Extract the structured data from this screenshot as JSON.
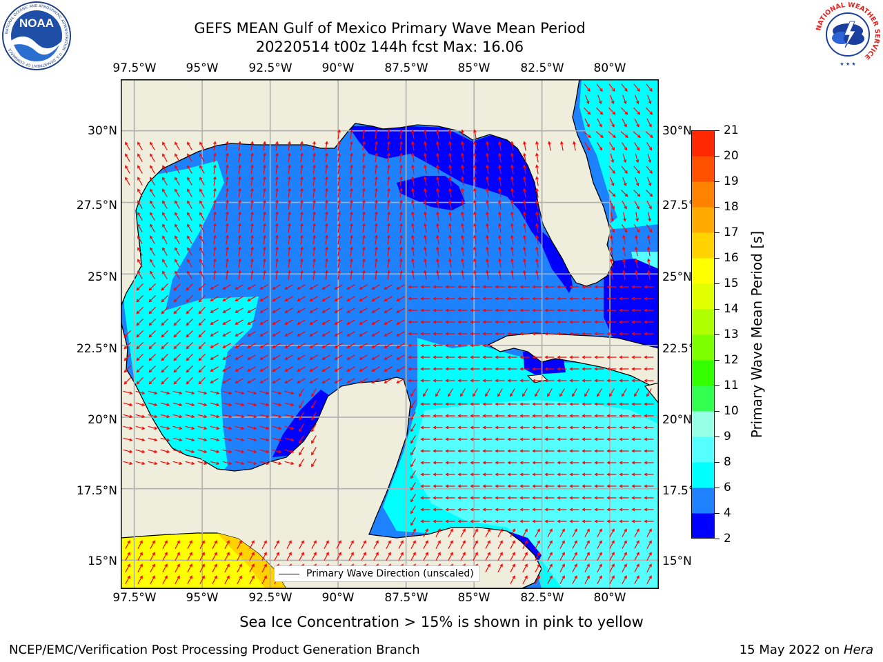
{
  "header": {
    "title_line1": "GEFS MEAN Gulf of Mexico Primary Wave Mean Period",
    "title_line2": "20220514 t00z 144h fcst   Max: 16.06"
  },
  "logos": {
    "noaa_text": "NOAA",
    "noaa_ring_text": "NATIONAL OCEANIC AND ATMOSPHERIC ADMINISTRATION · U.S. DEPARTMENT OF COMMERCE",
    "nws_ring_text": "NATIONAL WEATHER SERVICE"
  },
  "map": {
    "lon_ticks": [
      "97.5°W",
      "95°W",
      "92.5°W",
      "90°W",
      "87.5°W",
      "85°W",
      "82.5°W",
      "80°W"
    ],
    "lat_ticks": [
      "30°N",
      "27.5°N",
      "25°N",
      "22.5°N",
      "20°N",
      "17.5°N",
      "15°N"
    ],
    "lon_range": [
      -98,
      -78.2
    ],
    "lat_range": [
      14,
      31.8
    ],
    "colors": {
      "land": "#efeddc",
      "grid": "#b0b0b0",
      "arrow": "#ff0000"
    },
    "legend_label": "Primary Wave Direction (unscaled)"
  },
  "colorbar": {
    "label": "Primary Wave Mean Period [s]",
    "ticks": [
      "2",
      "4",
      "6",
      "8",
      "9",
      "10",
      "11",
      "12",
      "13",
      "14",
      "15",
      "16",
      "17",
      "18",
      "19",
      "20",
      "21"
    ],
    "colors": [
      "#0000ff",
      "#1e82ff",
      "#00ffff",
      "#55ffff",
      "#96ffe6",
      "#32ff50",
      "#32ff00",
      "#7dff00",
      "#afff00",
      "#e1ff00",
      "#ffff00",
      "#ffd200",
      "#ffaa00",
      "#ff8200",
      "#ff5000",
      "#ff2800"
    ]
  },
  "footer": {
    "note": "Sea Ice Concentration > 15% is shown in pink to yellow",
    "credit": "NCEP/EMC/Verification Post Processing Product Generation Branch",
    "date": "15 May 2022 on ",
    "machine": "Hera"
  }
}
